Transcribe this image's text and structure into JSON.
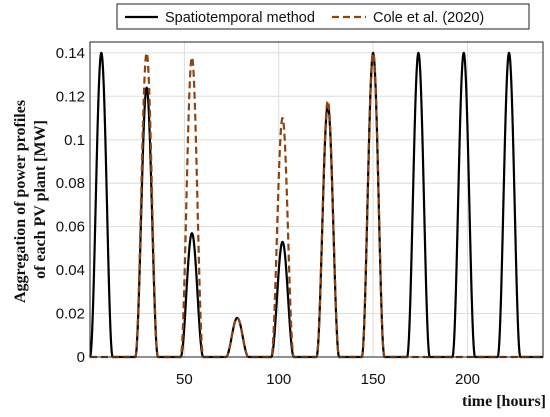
{
  "chart_data": {
    "type": "line",
    "title": "",
    "xlabel": "time [hours]",
    "ylabel_lines": [
      "Aggregation of power profiles",
      "of each PV plant [MW]"
    ],
    "xlim": [
      0,
      240
    ],
    "ylim": [
      0,
      0.145
    ],
    "xticks": [
      50,
      100,
      150,
      200
    ],
    "xtick_labels": [
      "50",
      "100",
      "150",
      "200"
    ],
    "yticks": [
      0,
      0.02,
      0.04,
      0.06,
      0.08,
      0.1,
      0.12,
      0.14
    ],
    "ytick_labels": [
      "0",
      "0.02",
      "0.04",
      "0.06",
      "0.08",
      "0.1",
      "0.12",
      "0.14"
    ],
    "grid": true,
    "legend_position": "top",
    "series": [
      {
        "name": "Spatiotemporal method",
        "style": "solid",
        "color": "#000000",
        "day_centers": [
          6,
          30,
          54,
          78,
          102,
          126,
          150,
          174,
          198,
          222
        ],
        "day_peaks": [
          0.14,
          0.124,
          0.057,
          0.018,
          0.053,
          0.116,
          0.14,
          0.14,
          0.14,
          0.14
        ],
        "half_width_hours": 6
      },
      {
        "name": "Cole et al. (2020)",
        "style": "dashed",
        "color": "#8B4513",
        "day_centers": [
          30,
          54,
          78,
          102,
          126,
          150
        ],
        "day_peaks": [
          0.14,
          0.138,
          0.018,
          0.11,
          0.118,
          0.14
        ],
        "half_width_hours": 6
      }
    ]
  }
}
